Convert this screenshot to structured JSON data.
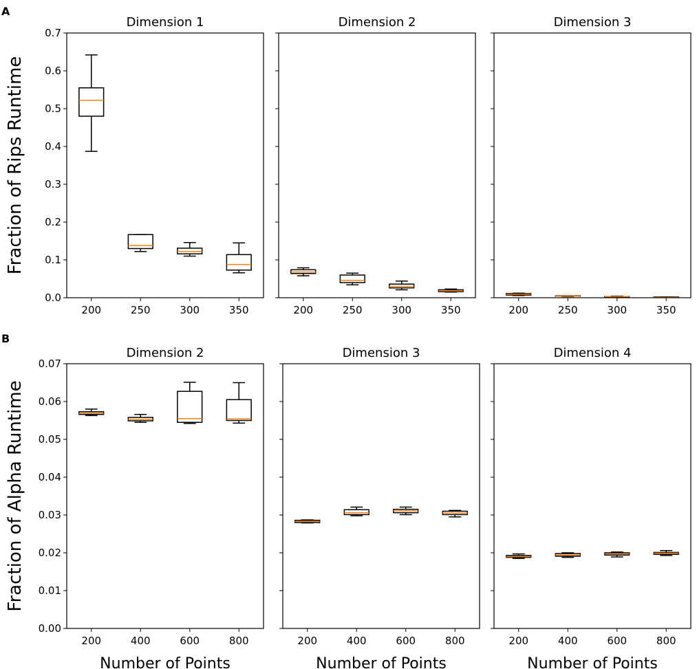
{
  "panel_letters": [
    "A",
    "B"
  ],
  "chart_data": [
    {
      "type": "box",
      "panel": "A",
      "title": "Dimension 1",
      "ylabel": "Fraction of Rips Runtime",
      "xlabel": "",
      "ylim": [
        0,
        0.7
      ],
      "yticks": [
        "0.0",
        "0.1",
        "0.2",
        "0.3",
        "0.4",
        "0.5",
        "0.6",
        "0.7"
      ],
      "categories": [
        "200",
        "250",
        "300",
        "350"
      ],
      "boxes": [
        {
          "whislo": 0.387,
          "q1": 0.48,
          "med": 0.522,
          "q3": 0.555,
          "whishi": 0.642
        },
        {
          "whislo": 0.122,
          "q1": 0.13,
          "med": 0.138,
          "q3": 0.167,
          "whishi": 0.167
        },
        {
          "whislo": 0.11,
          "q1": 0.116,
          "med": 0.122,
          "q3": 0.131,
          "whishi": 0.146
        },
        {
          "whislo": 0.066,
          "q1": 0.073,
          "med": 0.088,
          "q3": 0.114,
          "whishi": 0.145
        }
      ]
    },
    {
      "type": "box",
      "panel": "A",
      "title": "Dimension 2",
      "ylim": [
        0,
        0.7
      ],
      "yticks": [],
      "categories": [
        "200",
        "250",
        "300",
        "350"
      ],
      "boxes": [
        {
          "whislo": 0.058,
          "q1": 0.064,
          "med": 0.068,
          "q3": 0.074,
          "whishi": 0.079
        },
        {
          "whislo": 0.034,
          "q1": 0.04,
          "med": 0.046,
          "q3": 0.06,
          "whishi": 0.065
        },
        {
          "whislo": 0.021,
          "q1": 0.026,
          "med": 0.03,
          "q3": 0.036,
          "whishi": 0.044
        },
        {
          "whislo": 0.015,
          "q1": 0.016,
          "med": 0.018,
          "q3": 0.021,
          "whishi": 0.023
        }
      ]
    },
    {
      "type": "box",
      "panel": "A",
      "title": "Dimension 3",
      "ylim": [
        0,
        0.7
      ],
      "yticks": [],
      "categories": [
        "200",
        "250",
        "300",
        "350"
      ],
      "boxes": [
        {
          "whislo": 0.006,
          "q1": 0.007,
          "med": 0.009,
          "q3": 0.011,
          "whishi": 0.012
        },
        {
          "whislo": 0.003,
          "q1": 0.004,
          "med": 0.004,
          "q3": 0.005,
          "whishi": 0.005
        },
        {
          "whislo": 0.002,
          "q1": 0.002,
          "med": 0.003,
          "q3": 0.003,
          "whishi": 0.004
        },
        {
          "whislo": 0.001,
          "q1": 0.001,
          "med": 0.001,
          "q3": 0.002,
          "whishi": 0.002
        }
      ]
    },
    {
      "type": "box",
      "panel": "B",
      "title": "Dimension 2",
      "ylabel": "Fraction of Alpha Runtime",
      "xlabel": "Number of Points",
      "ylim": [
        0,
        0.07
      ],
      "yticks": [
        "0.00",
        "0.01",
        "0.02",
        "0.03",
        "0.04",
        "0.05",
        "0.06",
        "0.07"
      ],
      "categories": [
        "200",
        "400",
        "600",
        "800"
      ],
      "boxes": [
        {
          "whislo": 0.0563,
          "q1": 0.0566,
          "med": 0.0569,
          "q3": 0.0573,
          "whishi": 0.058
        },
        {
          "whislo": 0.0545,
          "q1": 0.0549,
          "med": 0.0553,
          "q3": 0.0558,
          "whishi": 0.0566
        },
        {
          "whislo": 0.0542,
          "q1": 0.0545,
          "med": 0.0555,
          "q3": 0.0627,
          "whishi": 0.0651
        },
        {
          "whislo": 0.0543,
          "q1": 0.055,
          "med": 0.0554,
          "q3": 0.0605,
          "whishi": 0.065
        }
      ]
    },
    {
      "type": "box",
      "panel": "B",
      "title": "Dimension 3",
      "xlabel": "Number of Points",
      "ylim": [
        0,
        0.07
      ],
      "yticks": [],
      "categories": [
        "200",
        "400",
        "600",
        "800"
      ],
      "boxes": [
        {
          "whislo": 0.0279,
          "q1": 0.028,
          "med": 0.0283,
          "q3": 0.0286,
          "whishi": 0.0287
        },
        {
          "whislo": 0.0298,
          "q1": 0.0301,
          "med": 0.0306,
          "q3": 0.0314,
          "whishi": 0.0321
        },
        {
          "whislo": 0.0301,
          "q1": 0.0306,
          "med": 0.0311,
          "q3": 0.0315,
          "whishi": 0.0321
        },
        {
          "whislo": 0.0295,
          "q1": 0.0301,
          "med": 0.0305,
          "q3": 0.031,
          "whishi": 0.0312
        }
      ]
    },
    {
      "type": "box",
      "panel": "B",
      "title": "Dimension 4",
      "xlabel": "Number of Points",
      "ylim": [
        0,
        0.07
      ],
      "yticks": [],
      "categories": [
        "200",
        "400",
        "600",
        "800"
      ],
      "boxes": [
        {
          "whislo": 0.0185,
          "q1": 0.0188,
          "med": 0.019,
          "q3": 0.0193,
          "whishi": 0.0197
        },
        {
          "whislo": 0.0188,
          "q1": 0.0191,
          "med": 0.0194,
          "q3": 0.0198,
          "whishi": 0.02
        },
        {
          "whislo": 0.0189,
          "q1": 0.0194,
          "med": 0.0197,
          "q3": 0.02,
          "whishi": 0.0202
        },
        {
          "whislo": 0.0193,
          "q1": 0.0196,
          "med": 0.0199,
          "q3": 0.0201,
          "whishi": 0.0206
        }
      ]
    }
  ],
  "colors": {
    "median": "#ff7f0e",
    "box": "#000000",
    "axes": "#000000",
    "background": "#ffffff"
  }
}
